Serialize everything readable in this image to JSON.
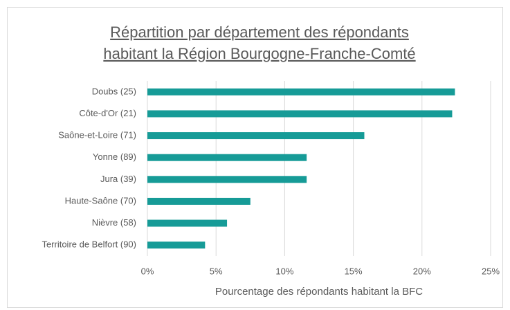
{
  "chart_data": {
    "type": "barh",
    "title": [
      "Répartition par département des répondants",
      "habitant la Région Bourgogne-Franche-Comté"
    ],
    "xlabel": "Pourcentage des répondants habitant la BFC",
    "categories": [
      "Doubs (25)",
      "Côte-d'Or (21)",
      "Saône-et-Loire (71)",
      "Yonne (89)",
      "Jura (39)",
      "Haute-Saône (70)",
      "Nièvre (58)",
      "Territoire de Belfort (90)"
    ],
    "values": [
      22.4,
      22.2,
      15.8,
      11.6,
      11.6,
      7.5,
      5.8,
      4.2
    ],
    "color": "#169b97",
    "xlim": [
      0,
      25
    ],
    "xticks": [
      {
        "value": 0,
        "label": "0%"
      },
      {
        "value": 5,
        "label": "5%"
      },
      {
        "value": 10,
        "label": "10%"
      },
      {
        "value": 15,
        "label": "15%"
      },
      {
        "value": 20,
        "label": "20%"
      },
      {
        "value": 25,
        "label": "25%"
      }
    ],
    "grid": true
  }
}
